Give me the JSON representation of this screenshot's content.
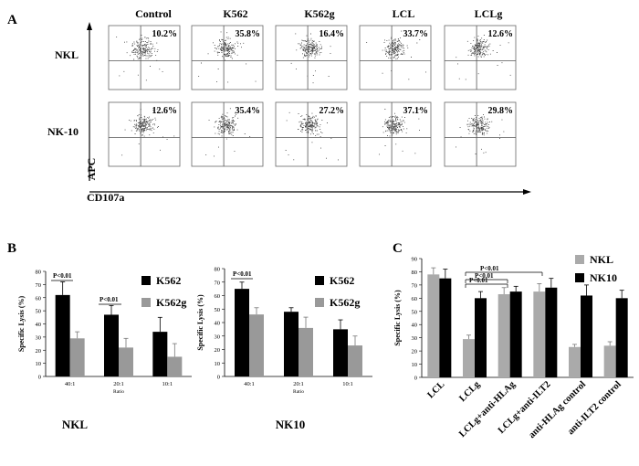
{
  "panel_a": {
    "letter": "A",
    "columns": [
      "Control",
      "K562",
      "K562g",
      "LCL",
      "LCLg"
    ],
    "rows": [
      {
        "label": "NKL",
        "percents": [
          "10.2%",
          "35.8%",
          "16.4%",
          "33.7%",
          "12.6%"
        ]
      },
      {
        "label": "NK-10",
        "percents": [
          "12.6%",
          "35.4%",
          "27.2%",
          "37.1%",
          "29.8%"
        ]
      }
    ],
    "y_axis_label": "APC",
    "x_axis_label": "CD107a"
  },
  "chart_data": [
    {
      "panel": "B",
      "type": "bar",
      "subtitle": "NKL",
      "ylabel": "Specific Lysis (%)",
      "xlabel": "Ratio",
      "ylim": [
        0,
        80
      ],
      "yticks": [
        0,
        10,
        20,
        30,
        40,
        50,
        60,
        70,
        80
      ],
      "categories": [
        "40:1",
        "20:1",
        "10:1"
      ],
      "series": [
        {
          "name": "K562",
          "color": "#000000",
          "values": [
            62,
            47,
            34
          ],
          "errors": [
            10,
            7,
            11
          ]
        },
        {
          "name": "K562g",
          "color": "#999999",
          "values": [
            29,
            22,
            15
          ],
          "errors": [
            5,
            7,
            10
          ]
        }
      ],
      "annotations": [
        {
          "text": "P<0.01",
          "category": "40:1"
        },
        {
          "text": "P<0.01",
          "category": "20:1"
        }
      ],
      "legend": "top-right"
    },
    {
      "panel": "",
      "type": "bar",
      "subtitle": "NK10",
      "ylabel": "Specific Lysis (%)",
      "xlabel": "Ratio",
      "ylim": [
        0,
        80
      ],
      "yticks": [
        0,
        10,
        20,
        30,
        40,
        50,
        60,
        70,
        80
      ],
      "categories": [
        "40:1",
        "20:1",
        "10:1"
      ],
      "series": [
        {
          "name": "K562",
          "color": "#000000",
          "values": [
            65,
            48,
            35
          ],
          "errors": [
            5,
            3,
            7
          ]
        },
        {
          "name": "K562g",
          "color": "#999999",
          "values": [
            46,
            36,
            23
          ],
          "errors": [
            5,
            8,
            7
          ]
        }
      ],
      "annotations": [
        {
          "text": "P<0.01",
          "category": "40:1"
        }
      ],
      "legend": "top-right"
    },
    {
      "panel": "C",
      "type": "bar",
      "ylabel": "Specific Lysis (%)",
      "ylim": [
        0,
        90
      ],
      "yticks": [
        0,
        10,
        20,
        30,
        40,
        50,
        60,
        70,
        80,
        90
      ],
      "categories": [
        "LCL",
        "LCLg",
        "LCLg+anti-HLAg",
        "LCLg+anti-ILT2",
        "anti-HLAg control",
        "anti-ILT2 control"
      ],
      "series": [
        {
          "name": "NKL",
          "color": "#aaaaaa",
          "values": [
            78,
            29,
            63,
            65,
            23,
            24
          ],
          "errors": [
            5,
            3,
            5,
            6,
            2,
            3
          ]
        },
        {
          "name": "NK10",
          "color": "#000000",
          "values": [
            75,
            60,
            65,
            68,
            62,
            60
          ],
          "errors": [
            7,
            5,
            4,
            7,
            8,
            6
          ]
        }
      ],
      "annotations": [
        {
          "text": "P<0.01",
          "from": "LCLg",
          "to": "LCLg+anti-HLAg"
        },
        {
          "text": "P<0.01",
          "from": "LCLg",
          "to": "LCLg+anti-HLAg"
        },
        {
          "text": "P<0.01",
          "from": "LCLg",
          "to": "LCLg+anti-ILT2"
        }
      ],
      "legend": "top-right"
    }
  ]
}
